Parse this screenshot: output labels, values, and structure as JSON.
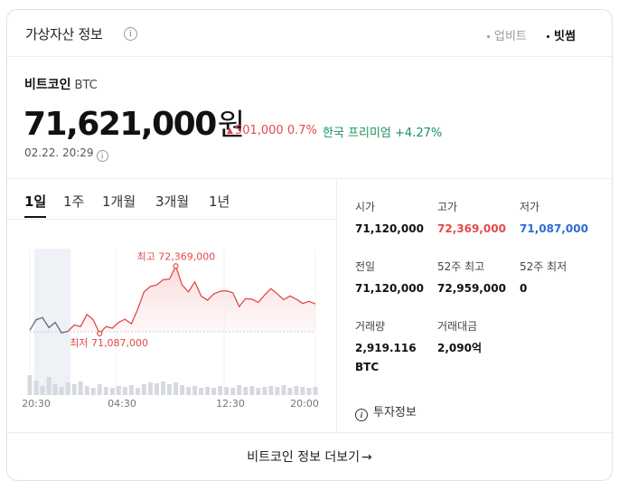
{
  "header": {
    "title": "가상자산 정보",
    "info_icon": "info-circle-icon",
    "sources": [
      {
        "label": "업비트",
        "active": false
      },
      {
        "label": "빗썸",
        "active": true
      }
    ]
  },
  "coin": {
    "name": "비트코인",
    "symbol": "BTC",
    "price": "71,621,000",
    "price_unit": "원",
    "change_symbol": "▲",
    "change_amount": "501,000",
    "change_percent": "0.7%",
    "premium": "한국 프리미엄 +4.27%",
    "timestamp": "02.22. 20:29"
  },
  "tabs": [
    {
      "label": "1일",
      "active": true
    },
    {
      "label": "1주",
      "active": false
    },
    {
      "label": "1개월",
      "active": false
    },
    {
      "label": "3개월",
      "active": false
    },
    {
      "label": "1년",
      "active": false
    }
  ],
  "chart_data": {
    "type": "line",
    "x_tick_labels": [
      "20:30",
      "04:30",
      "12:30",
      "20:00"
    ],
    "high_label": "최고 72,369,000",
    "low_label": "최저 71,087,000",
    "ylim": [
      70400000,
      72700000
    ],
    "reference_line": 71120000,
    "colors": {
      "line": "#e24a4a",
      "fill": "#fde8e8",
      "prev_line": "#5d6a82",
      "volume": "#d6d9df"
    },
    "series": [
      {
        "values": [
          71150000,
          71350000,
          71390000,
          71200000,
          71300000,
          71100000,
          71130000,
          71250000,
          71220000,
          71450000,
          71350000,
          71087000,
          71220000,
          71190000,
          71300000,
          71360000,
          71270000,
          71550000,
          71880000,
          71980000,
          72010000,
          72110000,
          72120000,
          72369000,
          72010000,
          71880000,
          72070000,
          71800000,
          71720000,
          71840000,
          71890000,
          71900000,
          71860000,
          71600000,
          71750000,
          71740000,
          71680000,
          71820000,
          71940000,
          71840000,
          71730000,
          71800000,
          71740000,
          71660000,
          71700000,
          71650000
        ]
      }
    ],
    "volume": [
      22,
      16,
      10,
      20,
      12,
      9,
      14,
      12,
      15,
      10,
      8,
      12,
      9,
      8,
      10,
      9,
      11,
      8,
      12,
      14,
      13,
      15,
      12,
      14,
      11,
      9,
      10,
      8,
      9,
      8,
      10,
      9,
      8,
      11,
      9,
      10,
      8,
      9,
      10,
      9,
      11,
      8,
      10,
      9,
      8,
      9
    ]
  },
  "stats": {
    "open": {
      "label": "시가",
      "value": "71,120,000"
    },
    "high": {
      "label": "고가",
      "value": "72,369,000"
    },
    "low": {
      "label": "저가",
      "value": "71,087,000"
    },
    "prev": {
      "label": "전일",
      "value": "71,120,000"
    },
    "high52": {
      "label": "52주 최고",
      "value": "72,959,000"
    },
    "low52": {
      "label": "52주 최저",
      "value": "0"
    },
    "volume": {
      "label": "거래량",
      "value": "2,919.116 BTC"
    },
    "amount": {
      "label": "거래대금",
      "value": "2,090억"
    }
  },
  "invest_info": "투자정보",
  "footer": {
    "label": "비트코인 정보 더보기",
    "arrow": "→"
  }
}
